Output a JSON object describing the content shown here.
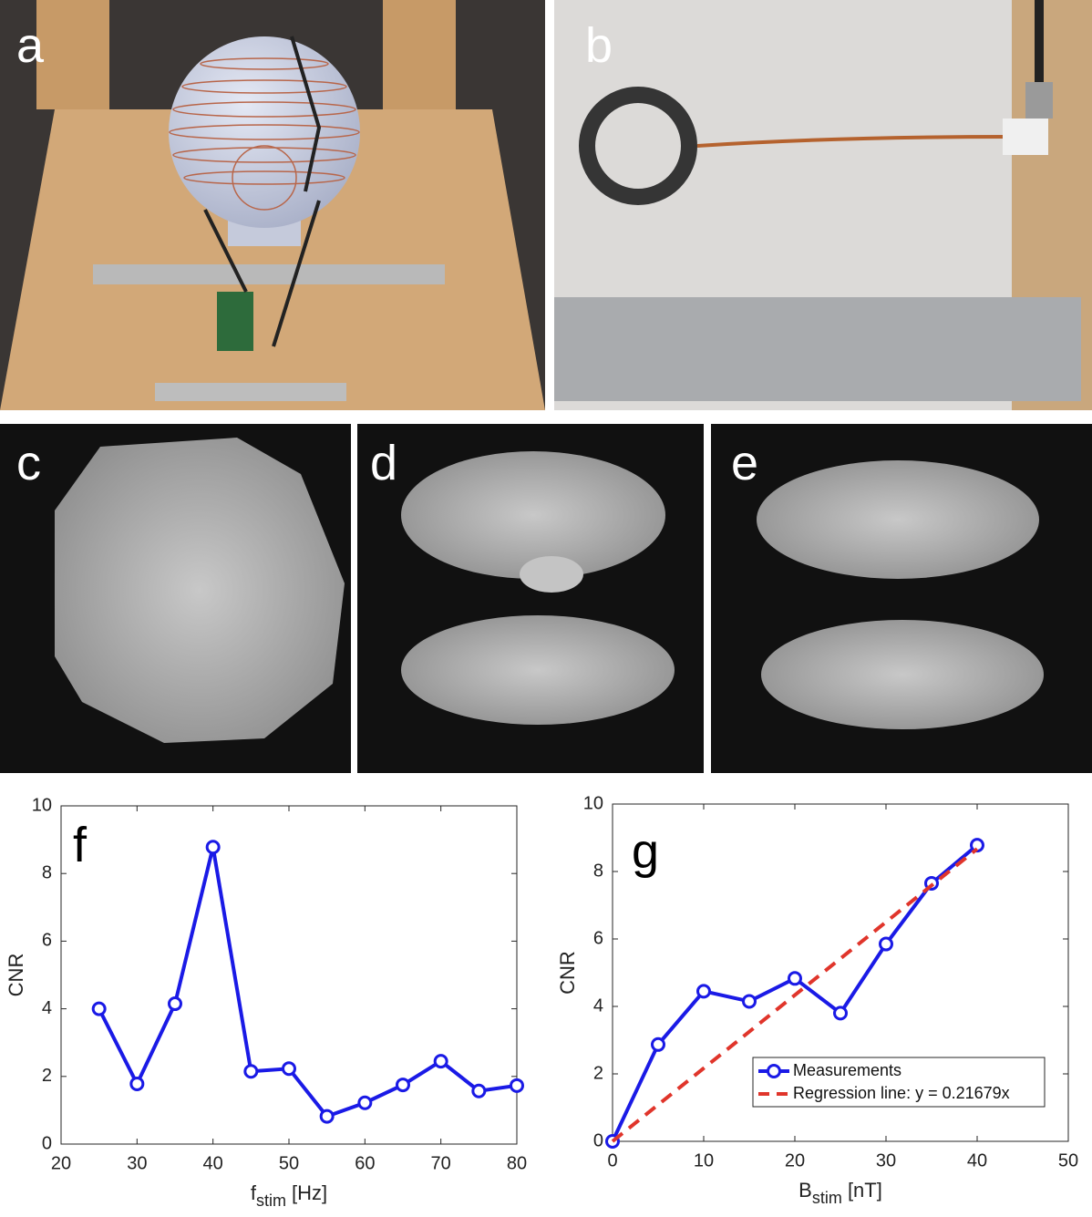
{
  "panels": [
    "a",
    "b",
    "c",
    "d",
    "e"
  ],
  "chart_data": [
    {
      "type": "line",
      "panel": "f",
      "xlabel": {
        "base": "f",
        "subscript": "stim",
        "rest": " [Hz]"
      },
      "ylabel": "CNR",
      "xlim": [
        20,
        80
      ],
      "xticks": [
        20,
        30,
        40,
        50,
        60,
        70,
        80
      ],
      "ylim": [
        0,
        10
      ],
      "yticks": [
        0,
        2,
        4,
        6,
        8,
        10
      ],
      "series": [
        {
          "x": [
            25,
            30,
            35,
            40,
            45,
            50,
            55,
            60,
            65,
            70,
            75,
            80
          ],
          "values": [
            4.0,
            1.78,
            4.15,
            8.78,
            2.15,
            2.23,
            0.82,
            1.22,
            1.75,
            2.45,
            1.57,
            1.73
          ],
          "color": "#1a1ae6",
          "marker": true,
          "dash": false
        }
      ]
    },
    {
      "type": "line",
      "panel": "g",
      "xlabel": {
        "base": "B",
        "subscript": "stim",
        "rest": " [nT]"
      },
      "ylabel": "CNR",
      "xlim": [
        0,
        50
      ],
      "xticks": [
        0,
        10,
        20,
        30,
        40,
        50
      ],
      "ylim": [
        0,
        10
      ],
      "yticks": [
        0,
        2,
        4,
        6,
        8,
        10
      ],
      "legend": "lower right",
      "series": [
        {
          "name": "Measurements",
          "x": [
            0,
            5,
            10,
            15,
            20,
            25,
            30,
            35,
            40
          ],
          "values": [
            0,
            2.87,
            4.45,
            4.15,
            4.83,
            3.8,
            5.85,
            7.65,
            8.78
          ],
          "color": "#1a1ae6",
          "marker": true,
          "dash": false
        },
        {
          "name": "Regression line: y = 0.21679x",
          "x": [
            0,
            40
          ],
          "values": [
            0,
            8.67
          ],
          "color": "#e0352b",
          "marker": false,
          "dash": true
        }
      ]
    }
  ]
}
